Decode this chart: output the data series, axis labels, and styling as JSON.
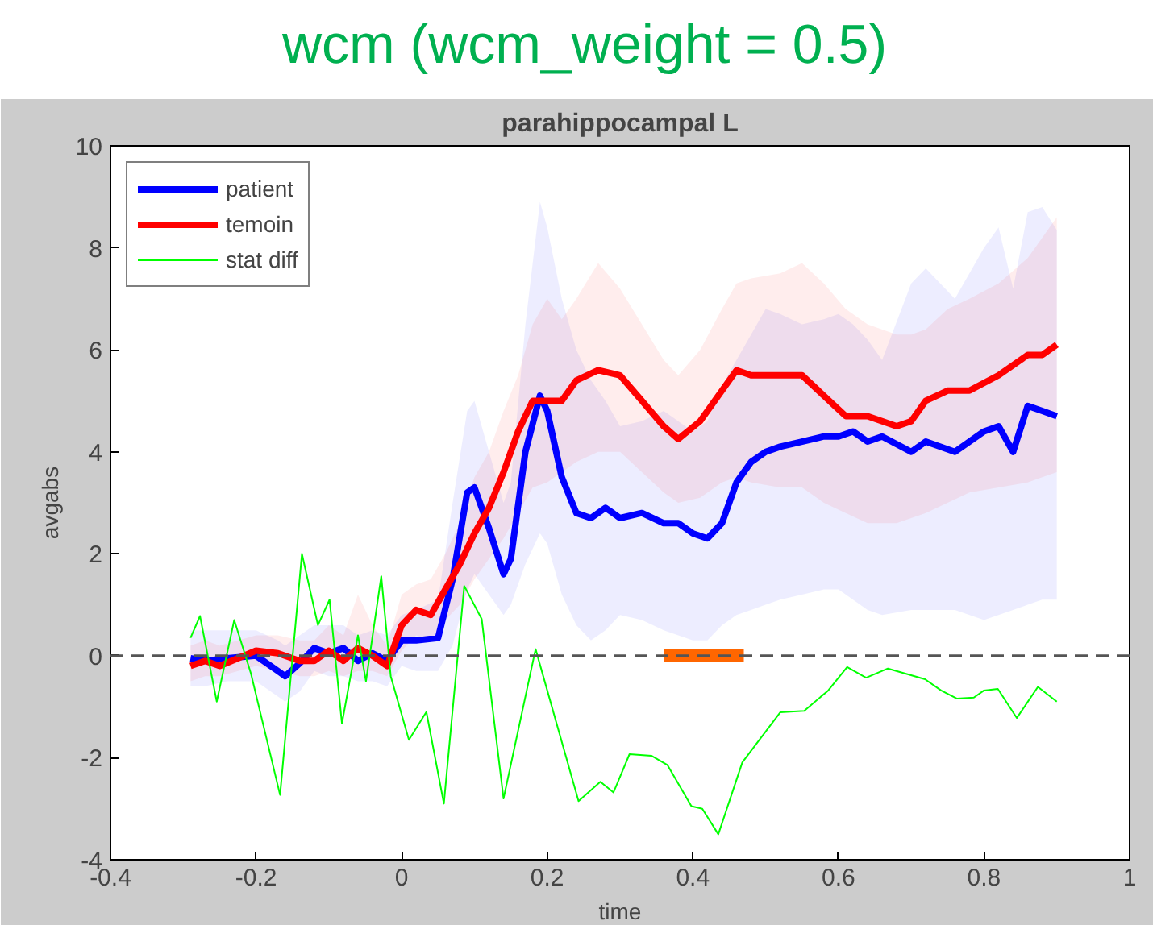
{
  "chart_data": {
    "type": "line",
    "title": "wcm (wcm_weight = 0.5)",
    "subtitle": "parahippocampal L",
    "xlabel": "time",
    "ylabel": "avgabs",
    "xlim": [
      -0.4,
      1
    ],
    "ylim": [
      -4,
      10
    ],
    "xticks": [
      -0.4,
      -0.2,
      0,
      0.2,
      0.4,
      0.6,
      0.8,
      1
    ],
    "yticks": [
      -4,
      -2,
      0,
      2,
      4,
      6,
      8,
      10
    ],
    "grid": false,
    "legend": "top left",
    "line_style": "solid",
    "series": [
      {
        "name": "patient",
        "color": "#0000ff",
        "x": [
          -0.29,
          -0.27,
          -0.24,
          -0.2,
          -0.17,
          -0.16,
          -0.14,
          -0.12,
          -0.1,
          -0.08,
          -0.06,
          -0.04,
          -0.02,
          0,
          0.02,
          0.05,
          0.07,
          0.09,
          0.1,
          0.12,
          0.14,
          0.15,
          0.17,
          0.19,
          0.2,
          0.22,
          0.24,
          0.26,
          0.28,
          0.3,
          0.33,
          0.36,
          0.38,
          0.4,
          0.42,
          0.44,
          0.46,
          0.48,
          0.5,
          0.52,
          0.55,
          0.58,
          0.6,
          0.62,
          0.64,
          0.66,
          0.7,
          0.72,
          0.76,
          0.8,
          0.82,
          0.84,
          0.86,
          0.88,
          0.9
        ],
        "values": [
          -0.05,
          -0.1,
          -0.05,
          0.0,
          -0.3,
          -0.4,
          -0.15,
          0.15,
          0.05,
          0.15,
          -0.1,
          0.05,
          -0.1,
          0.3,
          0.3,
          0.35,
          1.5,
          3.2,
          3.3,
          2.5,
          1.6,
          1.9,
          4.0,
          5.1,
          4.8,
          3.5,
          2.8,
          2.7,
          2.9,
          2.7,
          2.8,
          2.6,
          2.6,
          2.4,
          2.3,
          2.6,
          3.4,
          3.8,
          4.0,
          4.1,
          4.2,
          4.3,
          4.3,
          4.4,
          4.2,
          4.3,
          4.0,
          4.2,
          4.0,
          4.4,
          4.5,
          4.0,
          4.9,
          4.8,
          4.7
        ],
        "lower": [
          -0.6,
          -0.6,
          -0.5,
          -0.5,
          -0.8,
          -0.9,
          -0.7,
          -0.3,
          -0.4,
          -0.4,
          -0.5,
          -0.5,
          -0.6,
          -0.2,
          -0.3,
          -0.3,
          0.2,
          1.3,
          1.6,
          1.2,
          0.8,
          1.0,
          1.8,
          2.4,
          2.2,
          1.2,
          0.6,
          0.3,
          0.5,
          0.8,
          0.7,
          0.5,
          0.4,
          0.3,
          0.3,
          0.6,
          0.8,
          0.9,
          1.0,
          1.1,
          1.2,
          1.3,
          1.3,
          1.1,
          0.9,
          0.8,
          0.9,
          0.9,
          0.9,
          0.7,
          0.8,
          0.9,
          1.0,
          1.1,
          1.1
        ],
        "upper": [
          0.5,
          0.5,
          0.5,
          0.5,
          0.3,
          0.2,
          0.4,
          0.6,
          0.6,
          0.6,
          0.4,
          0.5,
          0.4,
          0.8,
          0.9,
          1.1,
          3.0,
          4.8,
          5.0,
          4.0,
          3.0,
          3.4,
          6.5,
          8.9,
          8.4,
          7.0,
          6.0,
          5.4,
          5.0,
          4.5,
          4.6,
          4.8,
          4.6,
          4.4,
          4.6,
          5.3,
          5.8,
          6.3,
          6.8,
          6.7,
          6.5,
          6.6,
          6.7,
          6.5,
          6.2,
          5.8,
          7.3,
          7.6,
          7.0,
          8.0,
          8.4,
          7.2,
          8.7,
          8.8,
          8.35
        ]
      },
      {
        "name": "temoin",
        "color": "#ff0000",
        "x": [
          -0.29,
          -0.27,
          -0.25,
          -0.2,
          -0.17,
          -0.14,
          -0.12,
          -0.1,
          -0.08,
          -0.06,
          -0.04,
          -0.02,
          0,
          0.02,
          0.04,
          0.06,
          0.08,
          0.1,
          0.12,
          0.14,
          0.16,
          0.18,
          0.2,
          0.22,
          0.24,
          0.27,
          0.3,
          0.33,
          0.36,
          0.38,
          0.41,
          0.44,
          0.46,
          0.48,
          0.52,
          0.55,
          0.58,
          0.61,
          0.64,
          0.68,
          0.7,
          0.72,
          0.75,
          0.78,
          0.82,
          0.86,
          0.88,
          0.9
        ],
        "values": [
          -0.2,
          -0.1,
          -0.2,
          0.1,
          0.05,
          -0.1,
          -0.1,
          0.1,
          -0.1,
          0.15,
          0.0,
          -0.2,
          0.6,
          0.9,
          0.8,
          1.3,
          1.8,
          2.4,
          2.9,
          3.6,
          4.4,
          5.0,
          5.0,
          5.0,
          5.4,
          5.6,
          5.5,
          5.0,
          4.5,
          4.25,
          4.6,
          5.2,
          5.6,
          5.5,
          5.5,
          5.5,
          5.1,
          4.7,
          4.7,
          4.5,
          4.6,
          5.0,
          5.2,
          5.2,
          5.5,
          5.9,
          5.9,
          6.1
        ],
        "lower": [
          -0.5,
          -0.4,
          -0.4,
          -0.2,
          -0.3,
          -0.4,
          -0.4,
          -0.3,
          -0.4,
          -0.3,
          -0.3,
          -0.4,
          0.1,
          0.4,
          0.3,
          0.7,
          1.0,
          1.5,
          1.9,
          2.3,
          2.8,
          3.3,
          3.4,
          3.6,
          3.8,
          4.0,
          4.0,
          3.6,
          3.2,
          3.0,
          3.1,
          3.4,
          3.5,
          3.4,
          3.3,
          3.3,
          3.0,
          2.8,
          2.6,
          2.6,
          2.7,
          2.8,
          3.0,
          3.2,
          3.3,
          3.4,
          3.5,
          3.6
        ],
        "upper": [
          0.2,
          0.3,
          0.2,
          0.4,
          0.4,
          0.3,
          0.3,
          0.6,
          0.4,
          1.2,
          0.6,
          0.2,
          1.2,
          1.4,
          1.5,
          2.0,
          2.6,
          3.5,
          4.0,
          4.8,
          5.5,
          6.5,
          7.0,
          6.6,
          7.0,
          7.7,
          7.2,
          6.5,
          5.8,
          5.5,
          6.0,
          6.8,
          7.3,
          7.4,
          7.5,
          7.7,
          7.3,
          6.8,
          6.5,
          6.3,
          6.3,
          6.4,
          6.8,
          7.0,
          7.3,
          7.8,
          8.2,
          8.6
        ]
      },
      {
        "name": "stat diff",
        "color": "#00ff00",
        "x": [
          -0.29,
          -0.277,
          -0.254,
          -0.23,
          -0.207,
          -0.167,
          -0.137,
          -0.115,
          -0.099,
          -0.082,
          -0.06,
          -0.049,
          -0.028,
          -0.015,
          0.01,
          0.034,
          0.058,
          0.086,
          0.11,
          0.14,
          0.184,
          0.243,
          0.273,
          0.291,
          0.313,
          0.343,
          0.365,
          0.398,
          0.413,
          0.435,
          0.468,
          0.52,
          0.553,
          0.586,
          0.612,
          0.638,
          0.668,
          0.719,
          0.741,
          0.763,
          0.786,
          0.8,
          0.819,
          0.845,
          0.874,
          0.9
        ],
        "values": [
          0.35,
          0.78,
          -0.9,
          0.7,
          -0.35,
          -2.73,
          2.0,
          0.6,
          1.1,
          -1.33,
          0.4,
          -0.5,
          1.56,
          -0.4,
          -1.65,
          -1.1,
          -2.9,
          1.37,
          0.72,
          -2.8,
          0.13,
          -2.85,
          -2.47,
          -2.68,
          -1.93,
          -1.96,
          -2.14,
          -2.95,
          -3.0,
          -3.5,
          -2.09,
          -1.11,
          -1.08,
          -0.68,
          -0.22,
          -0.43,
          -0.25,
          -0.46,
          -0.68,
          -0.84,
          -0.82,
          -0.68,
          -0.65,
          -1.22,
          -0.61,
          -0.9
        ]
      },
      {
        "color": "#ff6600",
        "x": [
          0.36,
          0.47
        ],
        "values": [
          0,
          0
        ]
      }
    ],
    "ref_lines": [
      {
        "axis": "y",
        "value": 0,
        "color": "#555555",
        "line_style": "dashed"
      }
    ]
  }
}
